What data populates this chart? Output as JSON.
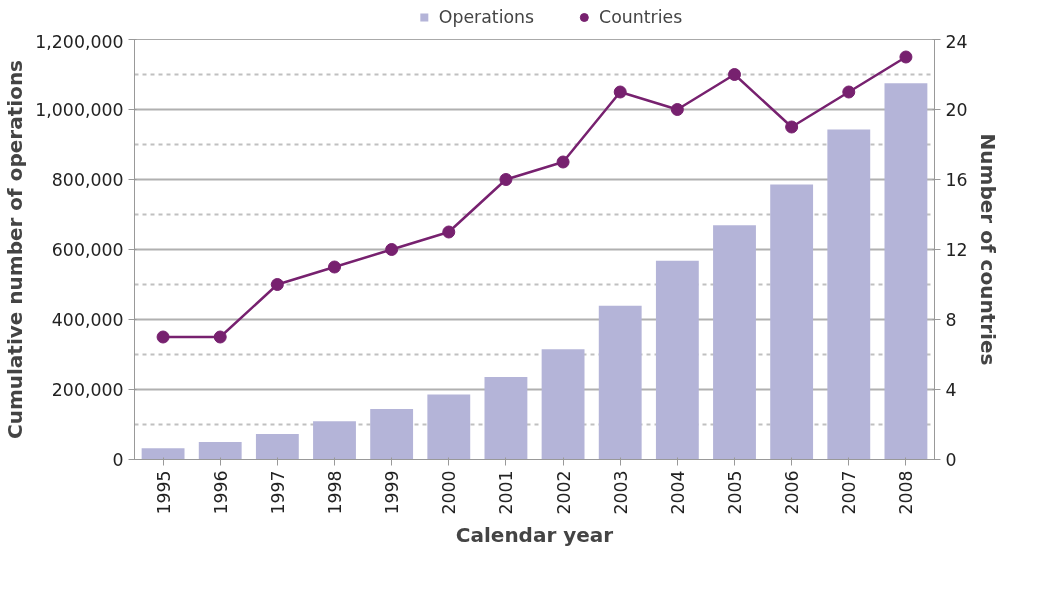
{
  "chart_data": {
    "type": "bar",
    "categories": [
      "1995",
      "1996",
      "1997",
      "1998",
      "1999",
      "2000",
      "2001",
      "2002",
      "2003",
      "2004",
      "2005",
      "2006",
      "2007",
      "2008"
    ],
    "xlabel": "Calendar year",
    "ylabel": "Cumulative number of operations",
    "y2label": "Number of countries",
    "ylim": [
      0,
      1200000
    ],
    "yticks": [
      {
        "value": 0,
        "label": "0"
      },
      {
        "value": 200000,
        "label": "200,000"
      },
      {
        "value": 400000,
        "label": "400,000"
      },
      {
        "value": 600000,
        "label": "600,000"
      },
      {
        "value": 800000,
        "label": "800,000"
      },
      {
        "value": 1000000,
        "label": "1,000,000"
      },
      {
        "value": 1200000,
        "label": "1,200,000"
      }
    ],
    "y2lim": [
      0,
      24
    ],
    "y2ticks": [
      0,
      4,
      8,
      12,
      16,
      20,
      24
    ],
    "grid": "y",
    "legend": "top",
    "series": [
      {
        "name": "Operations",
        "color": "#b4b4d8",
        "values": [
          32000,
          50000,
          73000,
          109000,
          144000,
          186000,
          236000,
          315000,
          439000,
          568000,
          669000,
          786000,
          943000,
          1075000
        ]
      },
      {
        "name": "Countries",
        "type": "line",
        "axis": "y2",
        "marker": "circle",
        "color": "#77216f",
        "values": [
          7,
          7,
          10,
          11,
          12,
          13,
          16,
          17,
          21,
          20,
          22,
          19,
          21,
          23
        ]
      }
    ]
  }
}
